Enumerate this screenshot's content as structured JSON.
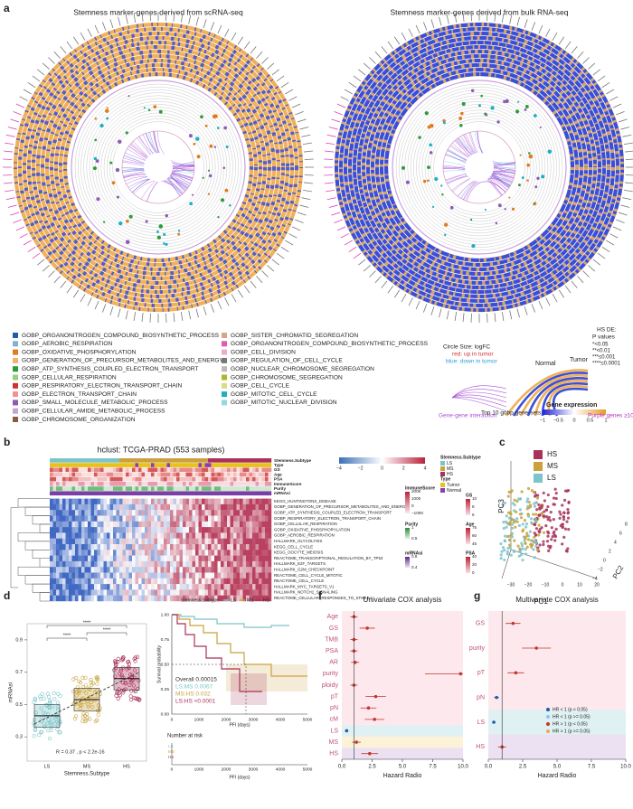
{
  "panel_letters": [
    "a",
    "b",
    "c",
    "d",
    "e",
    "f",
    "g"
  ],
  "a": {
    "title_left": "Stemness marker-genes derived from scRNA-seq",
    "title_right": "Stemness marker-genes derived from  bulk RNA-seq",
    "pathways": [
      "GOBP_ORGANONITROGEN_COMPOUND_BIOSYNTHETIC_PROCESS",
      "GOBP_AEROBIC_RESPIRATION",
      "GOBP_OXIDATIVE_PHOSPHORYLATION",
      "GOBP_GENERATION_OF_PRECURSOR_METABOLITES_AND_ENERGY",
      "GOBP_ATP_SYNTHESIS_COUPLED_ELECTRON_TRANSPORT",
      "GOBP_CELLULAR_RESPIRATION",
      "GOBP_RESPIRATORY_ELECTRON_TRANSPORT_CHAIN",
      "GOBP_ELECTRON_TRANSPORT_CHAIN",
      "GOBP_SMALL_MOLECULE_METABOLIC_PROCESS",
      "GOBP_CELLULAR_AMIDE_METABOLIC_PROCESS",
      "GOBP_CHROMOSOME_ORGANIZATION",
      "GOBP_SISTER_CHROMATID_SEGREGATION",
      "GOBP_ORGANONITROGEN_COMPOUND_BIOSYNTHETIC_PROCESS",
      "GOBP_CELL_DIVISION",
      "GOBP_REGULATION_OF_CELL_CYCLE",
      "GOBP_NUCLEAR_CHROMOSOME_SEGREGATION",
      "GOBP_CHROMOSOME_SEGREGATION",
      "GOBP_CELL_CYCLE",
      "GOBP_MITOTIC_CELL_CYCLE",
      "GOBP_MITOTIC_NUCLEAR_DIVISION"
    ],
    "pathway_colors": [
      "#1f5fa8",
      "#7fb2d9",
      "#e07b1f",
      "#f2b36b",
      "#2e9a3a",
      "#94d07e",
      "#d13030",
      "#f29191",
      "#8c5bb5",
      "#c3a5d8",
      "#8c5a3c",
      "#d1a88f",
      "#d95fb0",
      "#f2a8d5",
      "#777777",
      "#bbbbbb",
      "#b0b52a",
      "#d9dc8a",
      "#1bb0c4",
      "#95d8e0"
    ],
    "de_title": "HS DE:",
    "p_title": "P values",
    "p_levels": [
      "*<0.05",
      "**<0.01",
      "***≤0.001",
      "****≤0.0001"
    ],
    "circle_size": "Circle Size: logFC",
    "red_note": "red: up in tumor",
    "blue_note": "blue: down in tumor",
    "normal": "Normal",
    "tumor": "Tumor",
    "gene_gene": "Gene-gene interaction",
    "top10": "Top 10 gobp gene-sets",
    "gene_expression": "Gene expression",
    "expr_ticks": [
      "−1",
      "−0.5",
      "0",
      "0.5",
      "1"
    ],
    "purple_genes": "Purple genes ≥10 interacts"
  },
  "b": {
    "title": "hclust: TCGA-PRAD (553 samples)",
    "annotation_rows": [
      "Stemness.Subtype",
      "Type",
      "GS",
      "Age",
      "PSA",
      "ImmuneScore",
      "Purity",
      "mRNAsi"
    ],
    "rows": [
      "KEGG_HUNTINGTONS_DISEASE",
      "GOBP_GENERATION_OF_PRECURSOR_METABOLITES_AND_ENERGY",
      "GOBP_ATP_SYNTHESIS_COUPLED_ELECTRON_TRANSPORT",
      "GOBP_RESPIRATORY_ELECTRON_TRANSPORT_CHAIN",
      "GOBP_CELLULAR_RESPIRATION",
      "GOBP_OXIDATIVE_PHOSPHORYLATION",
      "GOBP_AEROBIC_RESPIRATION",
      "HALLMARK_GLYCOLYSIS",
      "KEGG_CELL_CYCLE",
      "KEGG_OOCYTE_MEIOSIS",
      "REACTOME_TRANSCRIPTIONAL_REGULATION_BY_TP53",
      "HALLMARK_E2F_TARGETS",
      "HALLMARK_G2M_CHECKPOINT",
      "REACTOME_CELL_CYCLE_MITOTIC",
      "REACTOME_CELL_CYCLE",
      "HALLMARK_MYC_TARGETS_V1",
      "HALLMARK_NOTCH1_SIGNALING",
      "REACTOME_CELLULAR_RESPONSES_TO_STIMULI"
    ],
    "scale_ticks": [
      "−4",
      "−2",
      "0",
      "2",
      "4"
    ],
    "subtype_title": "Stemness.Subtype",
    "subtypes": [
      "LS",
      "MS",
      "HS"
    ],
    "subtype_colors": [
      "#7cc4c9",
      "#c9a23c",
      "#a8325a"
    ],
    "type_title": "Type",
    "types": [
      "Tumor",
      "Normal"
    ],
    "type_colors": [
      "#e8c21a",
      "#8a3fb0"
    ],
    "immune_title": "ImmuneScore",
    "immune_ticks": [
      "2000",
      "1000",
      "0",
      "−1000"
    ],
    "gs_title": "GS",
    "gs_ticks": [
      "10",
      "8",
      "6"
    ],
    "age_title": "Age",
    "age_ticks": [
      "75",
      "60",
      "45"
    ],
    "purity_title": "Purity",
    "purity_ticks": [
      "1",
      "0.5"
    ],
    "psa_title": "PSA",
    "psa_ticks": [
      "40",
      "20",
      "0"
    ],
    "mrnasi_title": "mRNAsi",
    "mrnasi_ticks": [
      "0.8",
      "0.4"
    ]
  },
  "c": {
    "legend": [
      "HS",
      "MS",
      "LS"
    ],
    "colors": [
      "#a8325a",
      "#c9a23c",
      "#7cc4c9"
    ],
    "x_label": "PC1",
    "y_label": "PC3",
    "z_label": "PC2",
    "x_ticks": [
      "−30",
      "−20",
      "−10",
      "0",
      "10",
      "20"
    ],
    "z_ticks": [
      "−4",
      "−2",
      "0",
      "2",
      "4",
      "6",
      "8"
    ]
  },
  "d": {
    "y_label": "mRNAsi",
    "x_label": "Stemness.Subtype",
    "categories": [
      "LS",
      "MS",
      "HS"
    ],
    "medians": [
      0.43,
      0.53,
      0.66
    ],
    "ylim": [
      0.15,
      1.0
    ],
    "yticks": [
      0.3,
      0.5,
      0.7,
      0.9
    ],
    "significance": [
      "****",
      "****",
      "****"
    ],
    "stat": "R = 0.37 , p < 2.2e-16"
  },
  "e": {
    "legend_title": "Stemness.Subtype",
    "legend": [
      "LS",
      "MS",
      "HS"
    ],
    "y_label": "Survival probability",
    "yticks": [
      "0.00",
      "0.25",
      "0.50",
      "0.75",
      "1.00"
    ],
    "x_label": "PFI (days)",
    "xticks": [
      "0",
      "1000",
      "2000",
      "3000",
      "4000",
      "5000"
    ],
    "stats": [
      "Overall 0.00015",
      "LS:MS 0.0067",
      "MS:HS 0.032",
      "LS:HS <0.0001"
    ],
    "risk_title": "Number at risk"
  },
  "f": {
    "title": "Univariate COX analysis",
    "x_label": "Hazard Radio",
    "rows": [
      "Age",
      "GS",
      "TMB",
      "PSA",
      "AR",
      "purity",
      "ploidy",
      "pT",
      "pN",
      "cM",
      "LS",
      "MS",
      "HS"
    ],
    "hr": [
      1.0,
      2.1,
      1.0,
      1.0,
      1.1,
      9.8,
      1.0,
      2.8,
      2.2,
      2.7,
      0.4,
      1.2,
      2.3
    ],
    "xlim": [
      0,
      10
    ],
    "xticks": [
      {
        "value": 0,
        "label": "0.0"
      },
      2.5,
      {
        "value": 5,
        "label": "5.0"
      },
      7.5,
      {
        "value": 10,
        "label": "10.0"
      }
    ]
  },
  "g": {
    "title": "Multivariate COX analysis",
    "x_label": "Hazard Radio",
    "rows": [
      "GS",
      "purity",
      "pT",
      "pN",
      "LS",
      "HS"
    ],
    "hr": [
      1.8,
      3.5,
      2.0,
      0.6,
      0.4,
      1.0
    ],
    "xlim": [
      0,
      10
    ],
    "xticks": [
      {
        "value": 0,
        "label": "0.0"
      },
      2.5,
      {
        "value": 5,
        "label": "5.0"
      },
      7.5,
      {
        "value": 10,
        "label": "10.0"
      }
    ],
    "legend": [
      "HR < 1 (p < 0.05)",
      "HR < 1 (p >= 0.05)",
      "HR > 1 (p < 0.05)",
      "HR > 1 (p >= 0.05)"
    ],
    "legend_colors": [
      "#1f5fa8",
      "#8ec5e8",
      "#c0392b",
      "#f2a65a"
    ]
  }
}
